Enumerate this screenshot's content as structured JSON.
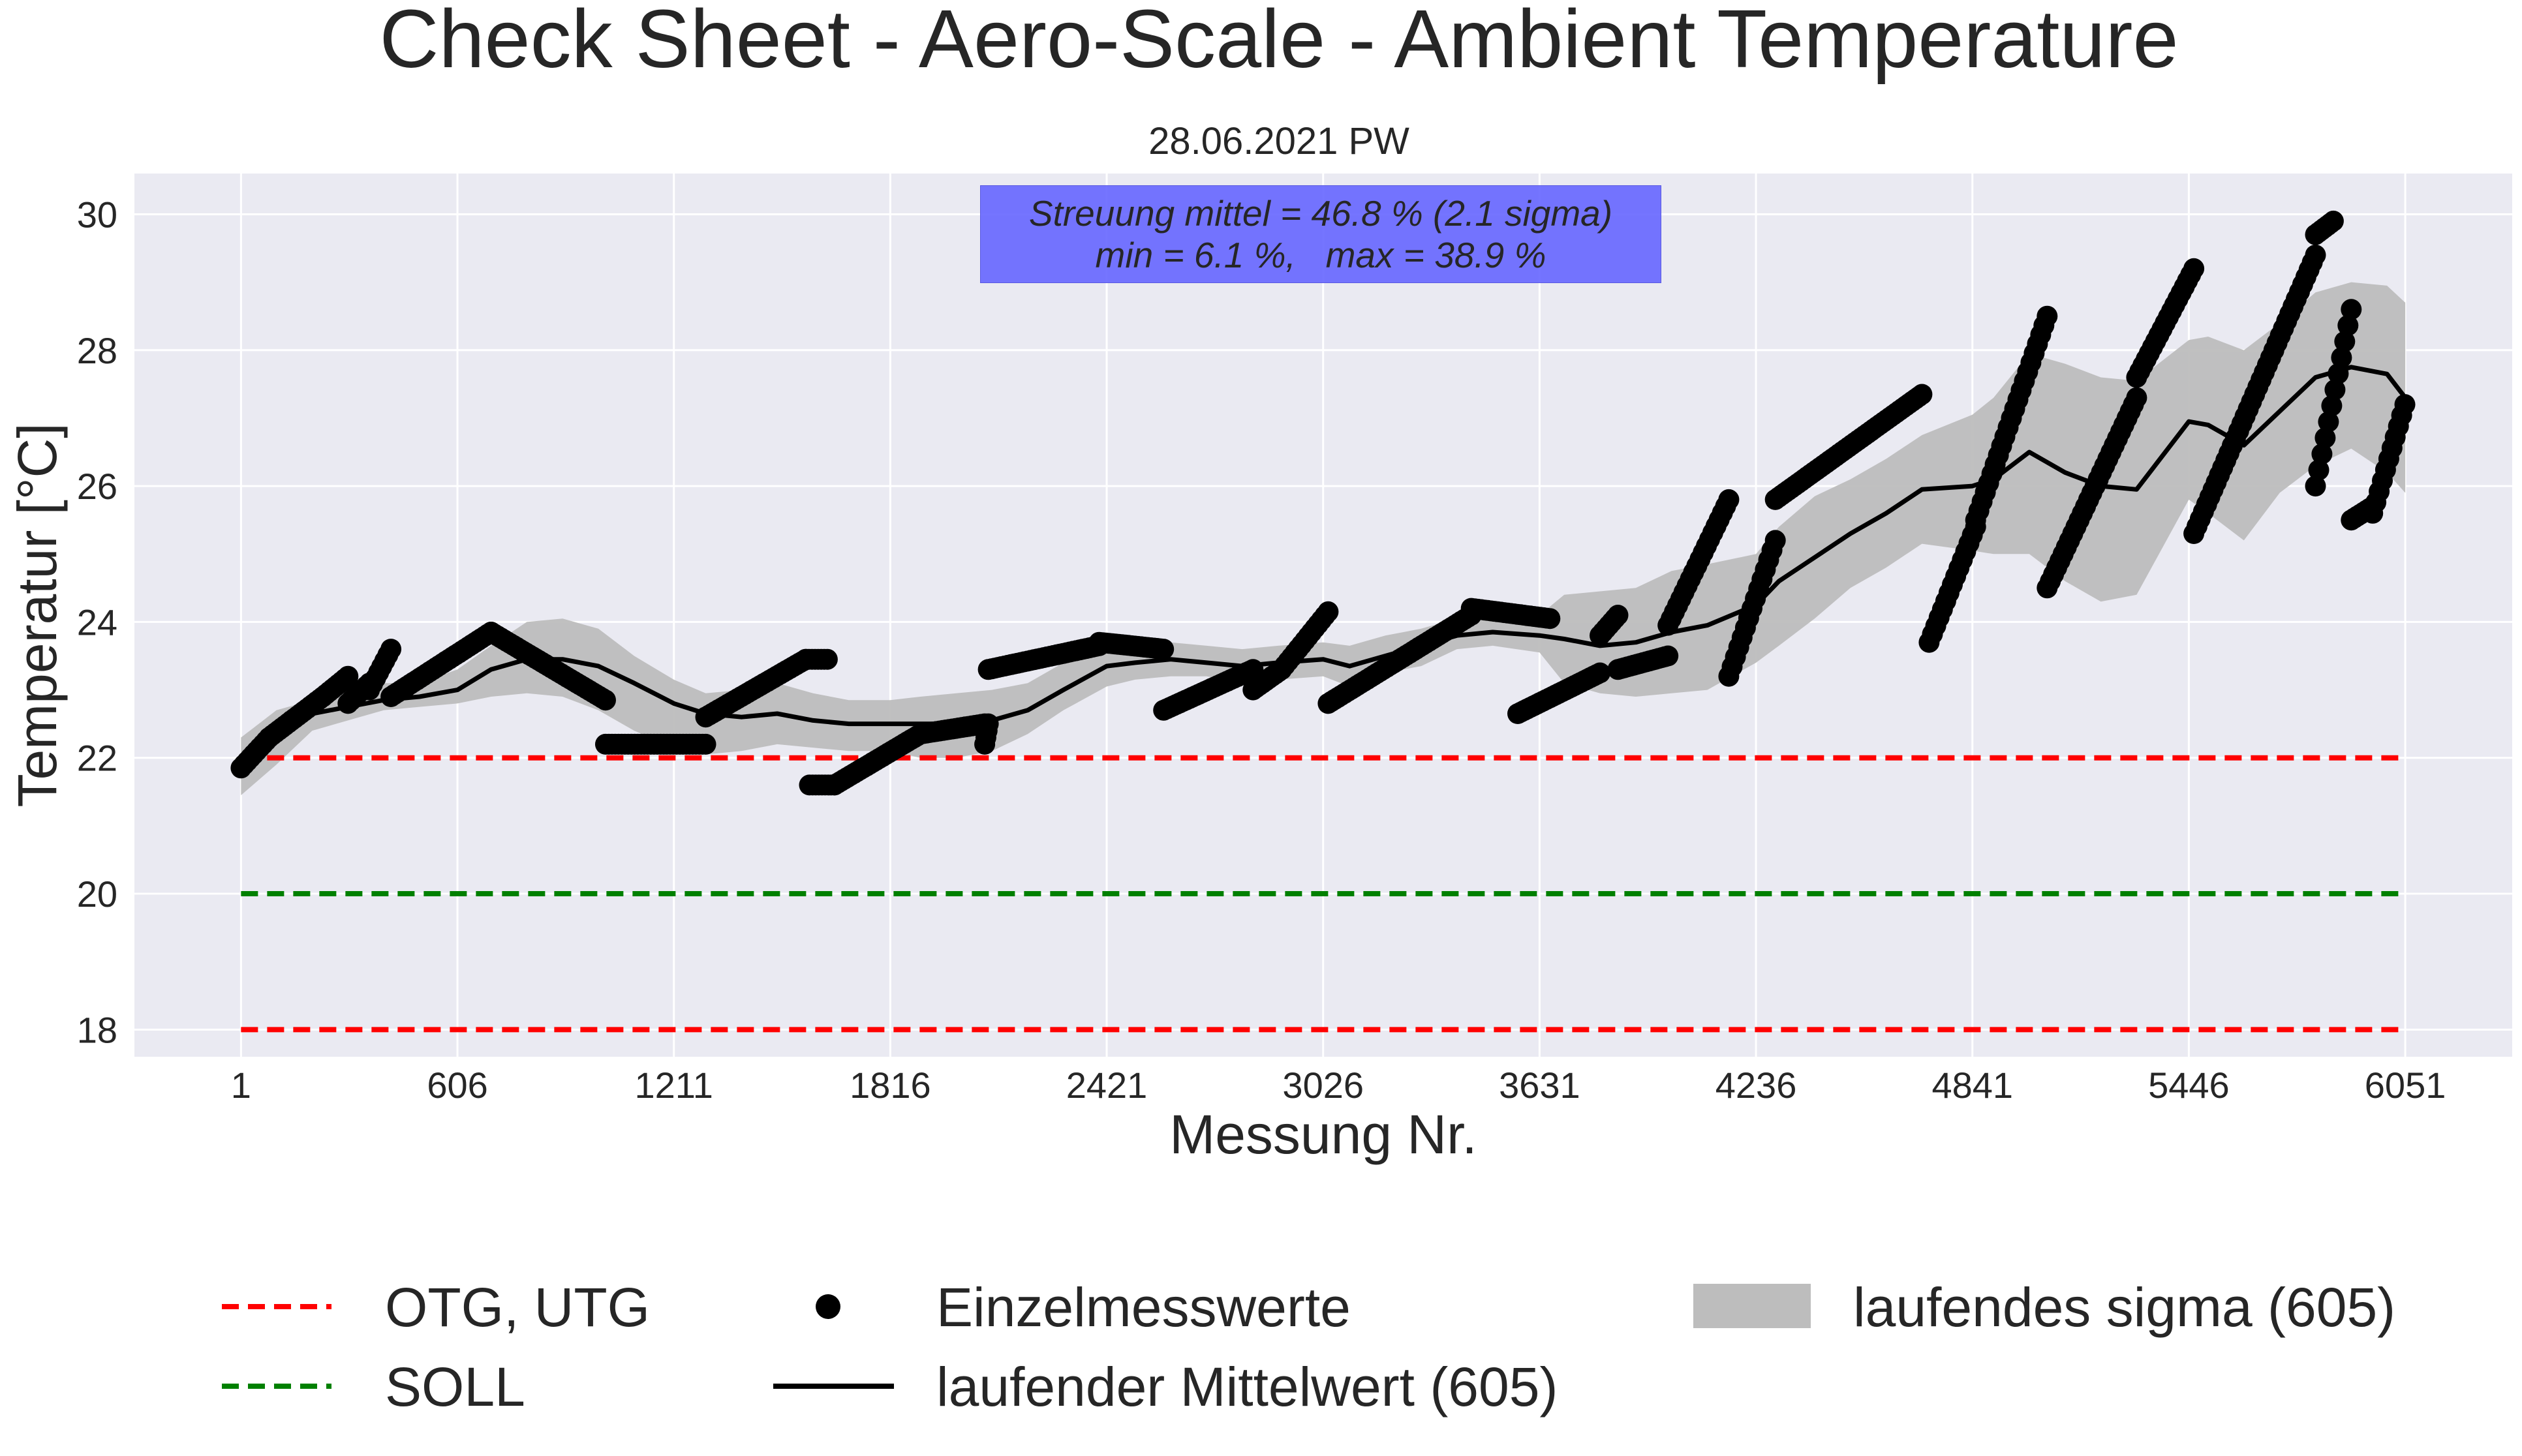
{
  "chart_data": {
    "type": "line",
    "title": "Check Sheet - Aero-Scale - Ambient Temperature",
    "subtitle": "28.06.2021 PW",
    "xlabel": "Messung Nr.",
    "ylabel": "Temperatur [°C]",
    "xlim": [
      -297,
      6350
    ],
    "ylim": [
      17.6,
      30.6
    ],
    "x_ticks": [
      1,
      606,
      1211,
      1816,
      2421,
      3026,
      3631,
      4236,
      4841,
      5446,
      6051
    ],
    "y_ticks": [
      18,
      20,
      22,
      24,
      26,
      28,
      30
    ],
    "grid": true,
    "legend_position": "bottom",
    "annotation": {
      "line1": "Streuung mittel = 46.8 % (2.1 sigma)",
      "line2": "min = 6.1 %,   max = 38.9 %"
    },
    "reference_lines": [
      {
        "name": "OTG, UTG",
        "y": 22.0,
        "color": "#ff0000",
        "style": "dashed"
      },
      {
        "name": "SOLL",
        "y": 20.0,
        "color": "#008000",
        "style": "dashed"
      },
      {
        "name": "OTG, UTG",
        "y": 18.0,
        "color": "#ff0000",
        "style": "dashed"
      }
    ],
    "series": [
      {
        "name": "Einzelmesswerte",
        "kind": "points",
        "color": "#000000",
        "segments": [
          {
            "x0": 1,
            "x1": 80,
            "y0": 21.85,
            "y1": 22.3
          },
          {
            "x0": 80,
            "x1": 230,
            "y0": 22.3,
            "y1": 22.9
          },
          {
            "x0": 230,
            "x1": 300,
            "y0": 22.9,
            "y1": 23.2
          },
          {
            "x0": 300,
            "x1": 360,
            "y0": 22.8,
            "y1": 23.1
          },
          {
            "x0": 360,
            "x1": 420,
            "y0": 23.0,
            "y1": 23.6
          },
          {
            "x0": 420,
            "x1": 700,
            "y0": 22.9,
            "y1": 23.85
          },
          {
            "x0": 700,
            "x1": 1020,
            "y0": 23.85,
            "y1": 22.85
          },
          {
            "x0": 1020,
            "x1": 1300,
            "y0": 22.2,
            "y1": 22.2
          },
          {
            "x0": 1300,
            "x1": 1580,
            "y0": 22.6,
            "y1": 23.45
          },
          {
            "x0": 1580,
            "x1": 1640,
            "y0": 23.45,
            "y1": 23.45
          },
          {
            "x0": 1590,
            "x1": 1660,
            "y0": 21.6,
            "y1": 21.6
          },
          {
            "x0": 1660,
            "x1": 1900,
            "y0": 21.6,
            "y1": 22.35
          },
          {
            "x0": 1900,
            "x1": 2080,
            "y0": 22.35,
            "y1": 22.5
          },
          {
            "x0": 2080,
            "x1": 2090,
            "y0": 22.2,
            "y1": 22.5
          },
          {
            "x0": 2090,
            "x1": 2400,
            "y0": 23.3,
            "y1": 23.65
          },
          {
            "x0": 2400,
            "x1": 2580,
            "y0": 23.7,
            "y1": 23.6
          },
          {
            "x0": 2580,
            "x1": 2830,
            "y0": 22.7,
            "y1": 23.3
          },
          {
            "x0": 2830,
            "x1": 2910,
            "y0": 23.0,
            "y1": 23.3
          },
          {
            "x0": 2910,
            "x1": 3040,
            "y0": 23.3,
            "y1": 24.15
          },
          {
            "x0": 3040,
            "x1": 3440,
            "y0": 22.8,
            "y1": 24.1
          },
          {
            "x0": 3440,
            "x1": 3660,
            "y0": 24.2,
            "y1": 24.05
          },
          {
            "x0": 3570,
            "x1": 3800,
            "y0": 22.65,
            "y1": 23.25
          },
          {
            "x0": 3800,
            "x1": 3850,
            "y0": 23.8,
            "y1": 24.1
          },
          {
            "x0": 3850,
            "x1": 3990,
            "y0": 23.3,
            "y1": 23.5
          },
          {
            "x0": 3990,
            "x1": 4160,
            "y0": 23.95,
            "y1": 25.8
          },
          {
            "x0": 4160,
            "x1": 4290,
            "y0": 23.2,
            "y1": 25.2
          },
          {
            "x0": 4290,
            "x1": 4700,
            "y0": 25.8,
            "y1": 27.35
          },
          {
            "x0": 4720,
            "x1": 4850,
            "y0": 23.7,
            "y1": 25.4
          },
          {
            "x0": 4850,
            "x1": 5050,
            "y0": 25.5,
            "y1": 28.5
          },
          {
            "x0": 5050,
            "x1": 5300,
            "y0": 24.5,
            "y1": 27.3
          },
          {
            "x0": 5300,
            "x1": 5460,
            "y0": 27.6,
            "y1": 29.2
          },
          {
            "x0": 5460,
            "x1": 5800,
            "y0": 25.3,
            "y1": 29.4
          },
          {
            "x0": 5800,
            "x1": 5850,
            "y0": 29.7,
            "y1": 29.9
          },
          {
            "x0": 5800,
            "x1": 5900,
            "y0": 26.0,
            "y1": 28.6
          },
          {
            "x0": 5900,
            "x1": 5960,
            "y0": 25.5,
            "y1": 25.7
          },
          {
            "x0": 5960,
            "x1": 6050,
            "y0": 25.6,
            "y1": 27.2
          }
        ]
      },
      {
        "name": "laufender Mittelwert (605)",
        "kind": "line",
        "color": "#000000",
        "x": [
          1,
          100,
          200,
          300,
          400,
          500,
          606,
          700,
          800,
          900,
          1000,
          1100,
          1211,
          1300,
          1400,
          1500,
          1600,
          1700,
          1816,
          1900,
          2000,
          2100,
          2200,
          2300,
          2421,
          2500,
          2600,
          2700,
          2800,
          2900,
          3026,
          3100,
          3200,
          3300,
          3400,
          3500,
          3631,
          3700,
          3800,
          3900,
          4000,
          4100,
          4236,
          4300,
          4400,
          4500,
          4600,
          4700,
          4841,
          4900,
          5000,
          5100,
          5200,
          5300,
          5446,
          5500,
          5600,
          5700,
          5800,
          5900,
          6000,
          6051
        ],
        "values": [
          22.0,
          22.4,
          22.65,
          22.75,
          22.85,
          22.9,
          23.0,
          23.3,
          23.45,
          23.45,
          23.35,
          23.1,
          22.8,
          22.65,
          22.6,
          22.65,
          22.55,
          22.5,
          22.5,
          22.5,
          22.5,
          22.55,
          22.7,
          23.0,
          23.35,
          23.4,
          23.45,
          23.4,
          23.35,
          23.4,
          23.45,
          23.35,
          23.5,
          23.65,
          23.8,
          23.85,
          23.8,
          23.75,
          23.65,
          23.7,
          23.85,
          23.95,
          24.25,
          24.6,
          24.95,
          25.3,
          25.6,
          25.95,
          26.0,
          26.1,
          26.5,
          26.2,
          26.0,
          25.95,
          26.95,
          26.9,
          26.6,
          27.1,
          27.6,
          27.75,
          27.65,
          27.3
        ]
      },
      {
        "name": "laufendes sigma (605)",
        "kind": "band",
        "color": "#bdbdbd",
        "x": [
          1,
          100,
          200,
          300,
          400,
          500,
          606,
          700,
          800,
          900,
          1000,
          1100,
          1211,
          1300,
          1400,
          1500,
          1600,
          1700,
          1816,
          1900,
          2000,
          2100,
          2200,
          2300,
          2421,
          2500,
          2600,
          2700,
          2800,
          2900,
          3026,
          3100,
          3200,
          3300,
          3400,
          3500,
          3631,
          3700,
          3800,
          3900,
          4000,
          4100,
          4236,
          4300,
          4400,
          4500,
          4600,
          4700,
          4841,
          4900,
          5000,
          5100,
          5200,
          5300,
          5446,
          5500,
          5600,
          5700,
          5800,
          5900,
          6000,
          6051
        ],
        "lower": [
          21.45,
          21.9,
          22.4,
          22.55,
          22.7,
          22.75,
          22.8,
          22.9,
          22.95,
          22.9,
          22.7,
          22.4,
          22.15,
          22.05,
          22.1,
          22.2,
          22.15,
          22.1,
          22.1,
          22.0,
          22.0,
          22.1,
          22.35,
          22.7,
          23.05,
          23.15,
          23.2,
          23.2,
          23.1,
          23.15,
          23.2,
          23.05,
          23.25,
          23.35,
          23.6,
          23.65,
          23.55,
          23.1,
          22.95,
          22.9,
          22.95,
          23.0,
          23.4,
          23.65,
          24.05,
          24.5,
          24.8,
          25.15,
          25.05,
          25.0,
          25.0,
          24.6,
          24.3,
          24.4,
          25.8,
          25.6,
          25.2,
          25.9,
          26.3,
          26.55,
          26.2,
          25.9
        ],
        "upper": [
          22.3,
          22.7,
          22.85,
          22.95,
          23.1,
          23.1,
          23.3,
          23.65,
          24.0,
          24.05,
          23.9,
          23.5,
          23.15,
          22.95,
          23.0,
          23.1,
          22.95,
          22.85,
          22.85,
          22.9,
          22.95,
          23.0,
          23.1,
          23.4,
          23.65,
          23.7,
          23.7,
          23.65,
          23.6,
          23.65,
          23.7,
          23.65,
          23.8,
          23.9,
          24.05,
          24.1,
          24.1,
          24.4,
          24.45,
          24.5,
          24.75,
          24.85,
          25.0,
          25.4,
          25.85,
          26.1,
          26.4,
          26.75,
          27.05,
          27.3,
          27.95,
          27.8,
          27.6,
          27.55,
          28.15,
          28.2,
          28.0,
          28.4,
          28.85,
          29.0,
          28.95,
          28.7
        ]
      }
    ],
    "legend": [
      {
        "label": "OTG, UTG",
        "marker": "red-dashed-line"
      },
      {
        "label": "SOLL",
        "marker": "green-dashed-line"
      },
      {
        "label": "Einzelmesswerte",
        "marker": "black-dot"
      },
      {
        "label": "laufender Mittelwert (605)",
        "marker": "black-line"
      },
      {
        "label": "laufendes sigma (605)",
        "marker": "gray-patch"
      }
    ]
  }
}
